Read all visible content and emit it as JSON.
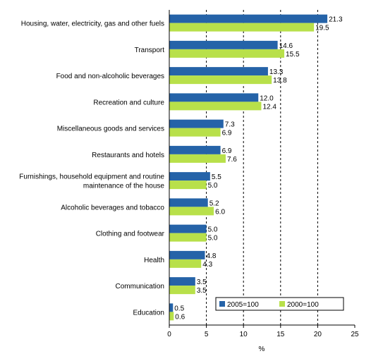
{
  "chart_data": {
    "type": "bar",
    "orientation": "horizontal",
    "categories": [
      [
        "Housing, water, electricity, gas and other fuels"
      ],
      [
        "Transport"
      ],
      [
        "Food and non-alcoholic beverages"
      ],
      [
        "Recreation and culture"
      ],
      [
        "Miscellaneous goods and services"
      ],
      [
        "Restaurants and hotels"
      ],
      [
        "Furnishings, household equipment and routine",
        "maintenance of the house"
      ],
      [
        "Alcoholic beverages and tobacco"
      ],
      [
        "Clothing and footwear"
      ],
      [
        "Health"
      ],
      [
        "Communication"
      ],
      [
        "Education"
      ]
    ],
    "series": [
      {
        "name": "2005=100",
        "color": "#2563a8",
        "values": [
          21.3,
          14.6,
          13.3,
          12.0,
          7.3,
          6.9,
          5.5,
          5.2,
          5.0,
          4.8,
          3.5,
          0.5
        ],
        "labels": [
          "21.3",
          "14.6",
          "13.3",
          "12.0",
          "7.3",
          "6.9",
          "5.5",
          "5.2",
          "5.0",
          "4.8",
          "3.5",
          "0.5"
        ]
      },
      {
        "name": "2000=100",
        "color": "#b8e04a",
        "values": [
          19.5,
          15.5,
          13.8,
          12.4,
          6.9,
          7.6,
          5.0,
          6.0,
          5.0,
          4.3,
          3.5,
          0.6
        ],
        "labels": [
          "19.5",
          "15.5",
          "13.8",
          "12.4",
          "6.9",
          "7.6",
          "5.0",
          "6.0",
          "5.0",
          "4.3",
          "3.5",
          "0.6"
        ]
      }
    ],
    "xlim": [
      0,
      25
    ],
    "xticks": [
      "0",
      "5",
      "10",
      "15",
      "20",
      "25"
    ],
    "gridlines": [
      5,
      10,
      15,
      20
    ],
    "grid": "vertical dashed",
    "xlabel": "%",
    "legend_position": "bottom-right"
  }
}
